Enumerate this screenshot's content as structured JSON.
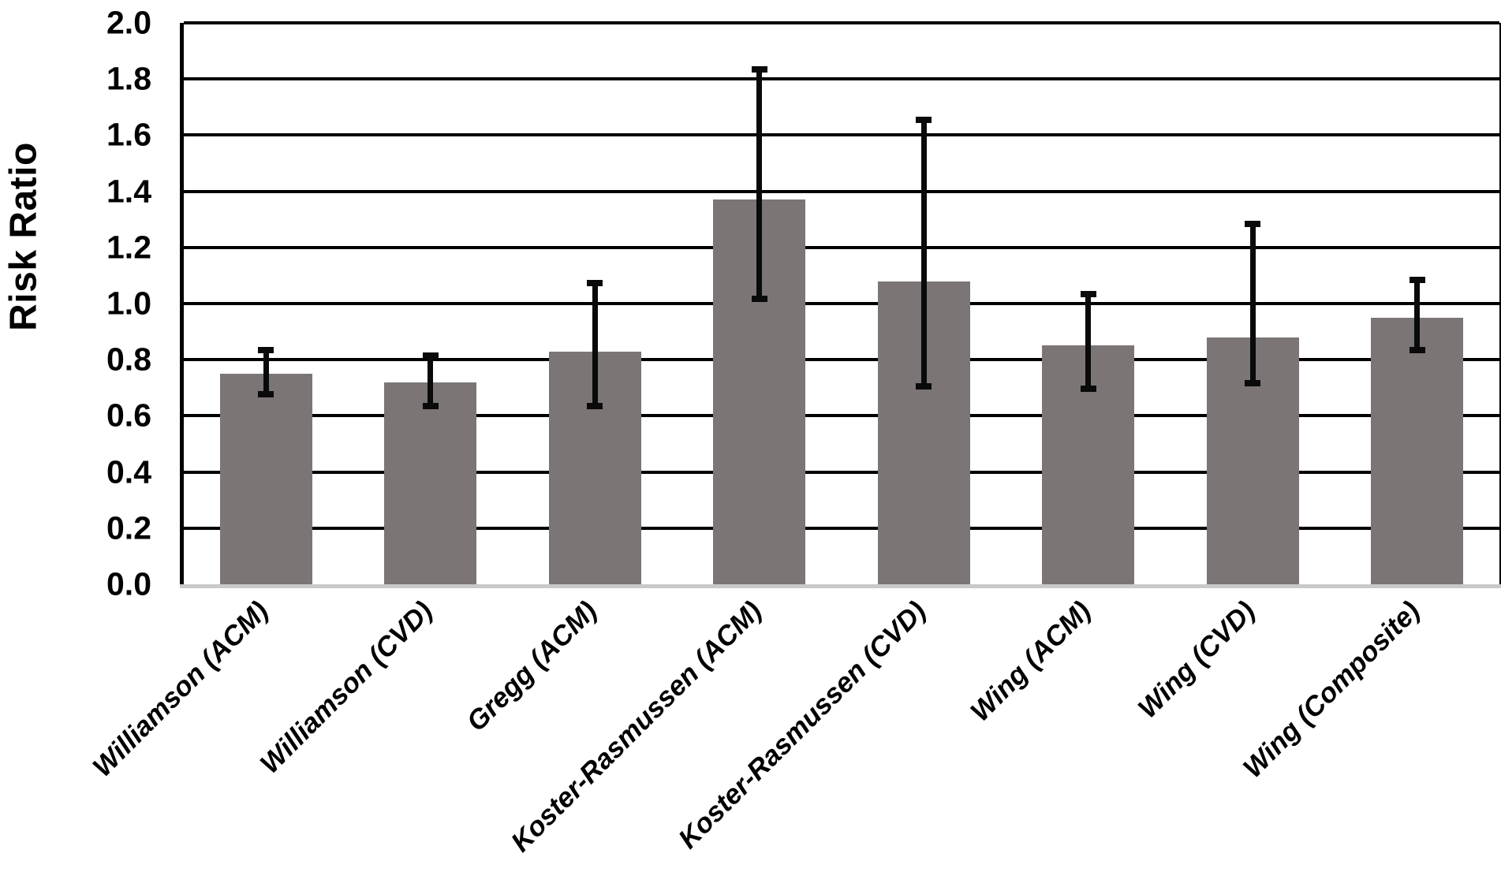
{
  "chart_data": {
    "type": "bar",
    "title": "",
    "xlabel": "",
    "ylabel": "Risk Ratio",
    "ylim": [
      0.0,
      2.0
    ],
    "ytick_interval": 0.2,
    "y_tick_labels": [
      "0.0",
      "0.2",
      "0.4",
      "0.6",
      "0.8",
      "1.0",
      "1.2",
      "1.4",
      "1.6",
      "1.8",
      "2.0"
    ],
    "grid": true,
    "legend": false,
    "categories": [
      "Williamson (ACM)",
      "Williamson (CVD)",
      "Gregg (ACM)",
      "Koster-Rasmussen (ACM)",
      "Koster-Rasmussen (CVD)",
      "Wing (ACM)",
      "Wing (CVD)",
      "Wing (Composite)"
    ],
    "values": [
      0.75,
      0.72,
      0.83,
      1.37,
      1.08,
      0.85,
      0.88,
      0.95
    ],
    "error_low": [
      0.67,
      0.63,
      0.63,
      1.01,
      0.7,
      0.69,
      0.71,
      0.83
    ],
    "error_high": [
      0.84,
      0.82,
      1.08,
      1.84,
      1.66,
      1.04,
      1.29,
      1.09
    ],
    "bar_color": "#7b7575",
    "error_bar_color": "#0a0a0a",
    "gridline_color": "#000000",
    "axis_color": "#000000",
    "baseline_color": "#c9c9c9",
    "background_color": "#ffffff",
    "text_color": "#000000"
  }
}
